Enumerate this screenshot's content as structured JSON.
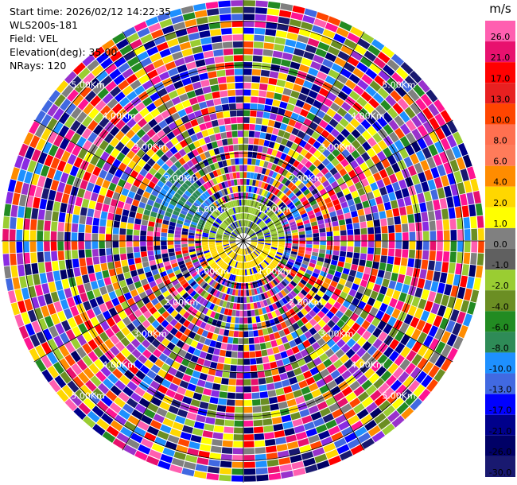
{
  "info": {
    "start_time": "Start time: 2026/02/12 14:22:35",
    "device": "WLS200s-181",
    "field": "Field: VEL",
    "elevation": "Elevation(deg): 35.00",
    "nrays": "NRays: 120"
  },
  "chart_data": {
    "type": "ppi",
    "field": "VEL",
    "rays": 120,
    "max_range_km": 5.5,
    "range_ring_labels": [
      "1.00Km",
      "2.00Km",
      "3.00Km",
      "4.00Km",
      "5.00Km"
    ],
    "range_rings_km": [
      1,
      2,
      3,
      4,
      5
    ],
    "colorbar": {
      "unit": "m/s",
      "ticks": [
        "26.0",
        "21.0",
        "17.0",
        "13.0",
        "10.0",
        "8.0",
        "6.0",
        "4.0",
        "2.0",
        "1.0",
        "0.0",
        "-1.0",
        "-2.0",
        "-4.0",
        "-6.0",
        "-8.0",
        "-10.0",
        "-13.0",
        "-17.0",
        "-21.0",
        "-26.0",
        "-30.0"
      ],
      "colors": [
        "#ff5fb0",
        "#e8116e",
        "#ff0000",
        "#e82020",
        "#ff4500",
        "#ff7050",
        "#ff7b5a",
        "#ff8c00",
        "#ffd700",
        "#ffff00",
        "#808080",
        "#606060",
        "#9acd32",
        "#6b8e23",
        "#228b22",
        "#2e8b57",
        "#1e90ff",
        "#4169e1",
        "#0000ff",
        "#00008b",
        "#000066",
        "#191970"
      ]
    }
  }
}
